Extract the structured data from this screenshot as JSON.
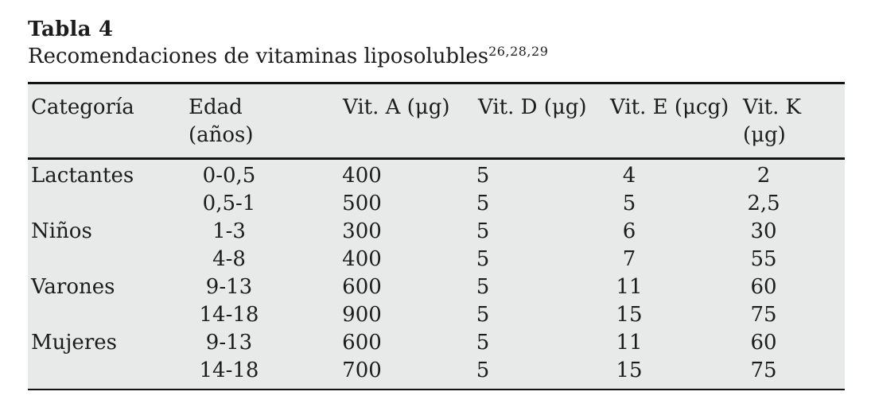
{
  "title": {
    "table_label": "Tabla 4",
    "caption": "Recomendaciones de vitaminas liposolubles",
    "caption_refs": "26,28,29"
  },
  "table": {
    "headers": [
      {
        "line1": "Categoría",
        "line2": ""
      },
      {
        "line1": "Edad",
        "line2": "(años)"
      },
      {
        "line1": "Vit. A (μg)",
        "line2": ""
      },
      {
        "line1": "Vit. D (μg)",
        "line2": ""
      },
      {
        "line1": "Vit. E (μcg)",
        "line2": ""
      },
      {
        "line1": "Vit. K (μg)",
        "line2": ""
      }
    ],
    "rows": [
      [
        "Lactantes",
        "0-0,5",
        "400",
        "5",
        "4",
        "2"
      ],
      [
        "",
        "0,5-1",
        "500",
        "5",
        "5",
        "2,5"
      ],
      [
        "Niños",
        "1-3",
        "300",
        "5",
        "6",
        "30"
      ],
      [
        "",
        "4-8",
        "400",
        "5",
        "7",
        "55"
      ],
      [
        "Varones",
        "9-13",
        "600",
        "5",
        "11",
        "60"
      ],
      [
        "",
        "14-18",
        "900",
        "5",
        "15",
        "75"
      ],
      [
        "Mujeres",
        "9-13",
        "600",
        "5",
        "11",
        "60"
      ],
      [
        "",
        "14-18",
        "700",
        "5",
        "15",
        "75"
      ]
    ]
  },
  "colors": {
    "table_background": "#e8e9e9",
    "rule": "#141414",
    "text": "#1c1c1c"
  }
}
